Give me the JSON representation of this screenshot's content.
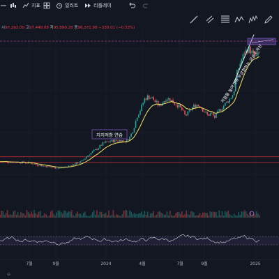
{
  "toolbar": {
    "indicator_label": "지표",
    "alert_label": "얼러트",
    "replay_label": "리플레이"
  },
  "ohlc": {
    "open_label": "시",
    "open": "97,292.00",
    "high_label": "고",
    "high": "97,448.08",
    "low_label": "저",
    "low": "95,890.28",
    "close_label": "종",
    "close": "96,371.98",
    "change": "−330.01 (−0.33%)"
  },
  "annotations": {
    "support_label": "지지저항 연습",
    "trend_label": "저점을 높여가며 우상향하는 상승추세선"
  },
  "colors": {
    "background": "#131722",
    "up_candle": "#26a69a",
    "down_candle": "#ef5350",
    "ema": "#f5e663",
    "support_line": "#b22833",
    "rsi_line": "#d1d4dc",
    "rsi_band": "#7e57c2",
    "annotation_box": "#7e57c2"
  },
  "chart_data": {
    "type": "candlestick",
    "x_axis_ticks": [
      "7월",
      "9월",
      "2024",
      "4월",
      "7월",
      "9월",
      "2025"
    ],
    "price_series": {
      "name": "",
      "points": [
        [
          0,
          30000
        ],
        [
          4,
          29800
        ],
        [
          8,
          29200
        ],
        [
          10,
          28000
        ],
        [
          12,
          27200
        ],
        [
          14,
          26300
        ],
        [
          16,
          26000
        ],
        [
          18,
          26800
        ],
        [
          20,
          28500
        ],
        [
          22,
          30000
        ],
        [
          24,
          34500
        ],
        [
          26,
          37500
        ],
        [
          28,
          41500
        ],
        [
          30,
          42600
        ],
        [
          32,
          43000
        ],
        [
          34,
          42500
        ],
        [
          35,
          45000
        ],
        [
          36,
          50000
        ],
        [
          37,
          58000
        ],
        [
          38,
          62500
        ],
        [
          39,
          68500
        ],
        [
          40,
          70000
        ],
        [
          41,
          69000
        ],
        [
          42,
          66500
        ],
        [
          43,
          64000
        ],
        [
          44,
          67000
        ],
        [
          45,
          69000
        ],
        [
          46,
          68000
        ],
        [
          47,
          66000
        ],
        [
          48,
          64500
        ],
        [
          49,
          62000
        ],
        [
          50,
          58000
        ],
        [
          51,
          60500
        ],
        [
          52,
          63500
        ],
        [
          53,
          65000
        ],
        [
          54,
          64000
        ],
        [
          55,
          61000
        ],
        [
          56,
          58500
        ],
        [
          57,
          59500
        ],
        [
          58,
          57000
        ],
        [
          59,
          61000
        ],
        [
          60,
          63500
        ],
        [
          61,
          66000
        ],
        [
          62,
          68500
        ],
        [
          63,
          72000
        ],
        [
          64,
          85000
        ],
        [
          65,
          92000
        ],
        [
          66,
          97000
        ],
        [
          67,
          99500
        ],
        [
          68,
          97000
        ],
        [
          69,
          94000
        ],
        [
          70,
          96500
        ]
      ]
    },
    "horizontal_levels": [
      {
        "price": 33000
      },
      {
        "price": 29500
      },
      {
        "price": 104000
      }
    ],
    "rsi": {
      "upper_band": 70,
      "lower_band": 30
    }
  }
}
